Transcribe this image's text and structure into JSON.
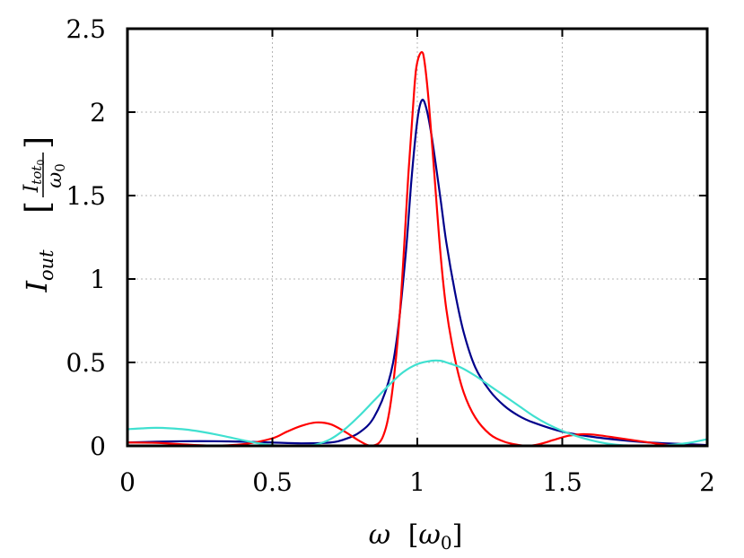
{
  "chart_data": {
    "type": "line",
    "xlabel": {
      "sym": "ω",
      "unit": "ω",
      "unit_sub": "0"
    },
    "ylabel": {
      "sym": "I",
      "sym_sub": "out",
      "num": "I",
      "num_sub": "tot",
      "num_subsub": "0",
      "den": "ω",
      "den_sub": "0"
    },
    "xlim": [
      0,
      2
    ],
    "ylim": [
      0,
      2.5
    ],
    "x_ticks": [
      0,
      0.5,
      1,
      1.5,
      2
    ],
    "x_tick_labels": [
      "0",
      "0.5",
      "1",
      "1.5",
      "2"
    ],
    "y_ticks": [
      0,
      0.5,
      1,
      1.5,
      2,
      2.5
    ],
    "y_tick_labels": [
      "0",
      "0.5",
      "1",
      "1.5",
      "2",
      "2.5"
    ],
    "grid": true,
    "legend": "none",
    "series": [
      {
        "color": "#00008b",
        "x": [
          0,
          0.1,
          0.2,
          0.3,
          0.4,
          0.5,
          0.6,
          0.7,
          0.75,
          0.8,
          0.85,
          0.9,
          0.93,
          0.96,
          0.98,
          1.0,
          1.015,
          1.03,
          1.05,
          1.08,
          1.1,
          1.13,
          1.16,
          1.2,
          1.25,
          1.3,
          1.35,
          1.4,
          1.5,
          1.6,
          1.7,
          1.8,
          1.9,
          2.0
        ],
        "y": [
          0.02,
          0.025,
          0.028,
          0.028,
          0.025,
          0.02,
          0.015,
          0.02,
          0.04,
          0.08,
          0.17,
          0.38,
          0.65,
          1.15,
          1.6,
          1.95,
          2.07,
          2.03,
          1.85,
          1.48,
          1.22,
          0.92,
          0.68,
          0.47,
          0.33,
          0.24,
          0.18,
          0.14,
          0.085,
          0.055,
          0.035,
          0.02,
          0.012,
          0.005
        ]
      },
      {
        "color": "#ff0000",
        "x": [
          0,
          0.1,
          0.2,
          0.3,
          0.4,
          0.5,
          0.55,
          0.6,
          0.65,
          0.7,
          0.75,
          0.8,
          0.84,
          0.88,
          0.91,
          0.94,
          0.97,
          0.99,
          1.0,
          1.015,
          1.025,
          1.04,
          1.06,
          1.08,
          1.1,
          1.13,
          1.16,
          1.2,
          1.25,
          1.3,
          1.35,
          1.38,
          1.42,
          1.47,
          1.52,
          1.57,
          1.62,
          1.7,
          1.8,
          1.87,
          1.95,
          2.0
        ],
        "y": [
          0.02,
          0.018,
          0.008,
          0.002,
          0.01,
          0.045,
          0.085,
          0.12,
          0.14,
          0.13,
          0.085,
          0.03,
          0.0,
          0.05,
          0.28,
          0.8,
          1.65,
          2.15,
          2.3,
          2.36,
          2.3,
          2.05,
          1.6,
          1.15,
          0.82,
          0.52,
          0.32,
          0.17,
          0.07,
          0.025,
          0.005,
          0.0,
          0.01,
          0.035,
          0.06,
          0.07,
          0.065,
          0.045,
          0.02,
          0.005,
          0.003,
          0.002
        ]
      },
      {
        "color": "#40e0d0",
        "x": [
          0,
          0.05,
          0.1,
          0.15,
          0.2,
          0.25,
          0.3,
          0.35,
          0.4,
          0.45,
          0.5,
          0.55,
          0.6,
          0.65,
          0.7,
          0.75,
          0.8,
          0.85,
          0.9,
          0.95,
          1.0,
          1.05,
          1.08,
          1.1,
          1.15,
          1.2,
          1.25,
          1.3,
          1.35,
          1.4,
          1.45,
          1.5,
          1.55,
          1.6,
          1.65,
          1.7,
          1.75,
          1.8,
          1.85,
          1.9,
          1.95,
          2.0
        ],
        "y": [
          0.1,
          0.105,
          0.108,
          0.105,
          0.098,
          0.086,
          0.07,
          0.052,
          0.033,
          0.016,
          0.004,
          0.0,
          0.0,
          0.008,
          0.04,
          0.1,
          0.18,
          0.27,
          0.36,
          0.44,
          0.49,
          0.51,
          0.51,
          0.5,
          0.47,
          0.42,
          0.36,
          0.3,
          0.24,
          0.18,
          0.13,
          0.09,
          0.058,
          0.033,
          0.015,
          0.005,
          0.001,
          0.0,
          0.002,
          0.01,
          0.022,
          0.04
        ]
      }
    ]
  }
}
